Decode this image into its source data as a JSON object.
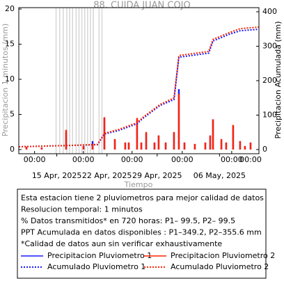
{
  "chart_data": {
    "type": "bar",
    "title": "88. CUIDA JUAN COJO",
    "y_label": "Precipitacion 1 minutos (mm)",
    "y2_label": "Precipitacion Acumulada (mm)",
    "x_label": "Tiempo",
    "xlim": [
      9.7,
      43.2
    ],
    "ylim": [
      0,
      20
    ],
    "yticks": [
      0,
      5,
      10,
      15,
      20
    ],
    "y2lim": [
      0,
      408
    ],
    "y2ticks": [
      0,
      100,
      200,
      300,
      400
    ],
    "xticks": [
      {
        "value": 11.9,
        "label": "00:00"
      },
      {
        "value": 18.7,
        "label": "00:00"
      },
      {
        "value": 25.5,
        "label": "00:00"
      },
      {
        "value": 32.5,
        "label": "00:00"
      },
      {
        "value": 39.4,
        "label": "00:00"
      },
      {
        "value": 43.2,
        "label": "00:00"
      }
    ],
    "date_ticks": [
      {
        "value": 15,
        "label": "15 Apr, 2025"
      },
      {
        "value": 22,
        "label": "22 Apr, 2025"
      },
      {
        "value": 29,
        "label": "29 Apr, 2025"
      },
      {
        "value": 37.7,
        "label": "06 May, 2025"
      }
    ],
    "gap_lines": [
      14.9,
      15.4,
      15.9,
      16.4,
      16.8,
      17.2,
      17.7,
      18.1,
      18.5,
      18.9,
      19.3,
      19.7,
      20.1,
      20.9,
      21.3
    ],
    "gap_color": "#d6d6d6",
    "x": [
      10.77,
      12.9,
      16.3,
      18.73,
      19.99,
      21.64,
      23.1,
      24.55,
      25.04,
      26.2,
      26.79,
      27.47,
      28.63,
      29.21,
      30.19,
      31.35,
      32.03,
      32.81,
      34.26,
      35.72,
      36.4,
      36.79,
      37.96,
      38.63,
      39.6,
      40.57,
      41.25,
      42.03
    ],
    "series": [
      {
        "name": "Precipitacion Pluviometro 1",
        "color": "#1a1aff",
        "type": "bar",
        "values": [
          0.4,
          0.3,
          2.5,
          0.5,
          1.2,
          4.5,
          1.4,
          1,
          1,
          4.2,
          1,
          2.3,
          1,
          2,
          1,
          2.4,
          8.6,
          1,
          0.8,
          1,
          2,
          4.3,
          1.3,
          1,
          3.4,
          1.2,
          0.5,
          1
        ]
      },
      {
        "name": "Precipitacion Pluviometro 2",
        "color": "#ff2200",
        "type": "bar",
        "values": [
          0.4,
          0.3,
          2.8,
          0.5,
          0.8,
          4.6,
          1.5,
          1,
          1,
          4.5,
          1,
          2.5,
          1,
          2,
          1,
          2.5,
          7.9,
          1,
          0.8,
          1,
          2,
          4.3,
          1.5,
          1,
          3.5,
          1.2,
          0.5,
          1
        ]
      },
      {
        "name": "Acumulado Pluviometro 1",
        "color": "#1a1aff",
        "type": "line",
        "axis": "y2",
        "x": [
          9.7,
          16.79,
          20.67,
          21.64,
          23.58,
          26.2,
          26.98,
          29.41,
          31.35,
          32.03,
          36.2,
          36.79,
          39.12,
          40.57,
          43.2
        ],
        "values": [
          8,
          12,
          14,
          45,
          55,
          75,
          90,
          128,
          145,
          268,
          280,
          315,
          335,
          345,
          349.2
        ]
      },
      {
        "name": "Acumulado Pluviometro 2",
        "color": "#ff2200",
        "type": "line",
        "axis": "y2",
        "x": [
          9.7,
          16.79,
          20.67,
          21.64,
          23.58,
          26.2,
          26.98,
          29.41,
          31.35,
          32.03,
          36.2,
          36.79,
          39.12,
          40.57,
          43.2
        ],
        "values": [
          8,
          12,
          15,
          47,
          58,
          78,
          93,
          131,
          150,
          273,
          285,
          320,
          340,
          351,
          355.6
        ]
      }
    ],
    "notes": [
      "Esta estacion tiene 2 pluviometros para mejor calidad de datos",
      "Resolucion temporal: 1 minutos",
      "% Datos transmitidos* en 720 horas: P1– 99.5, P2– 99.5",
      "PPT Acumulada en datos disponibles : P1–349.2, P2–355.6 mm",
      "*Calidad de datos aun sin verificar exhaustivamente"
    ]
  }
}
